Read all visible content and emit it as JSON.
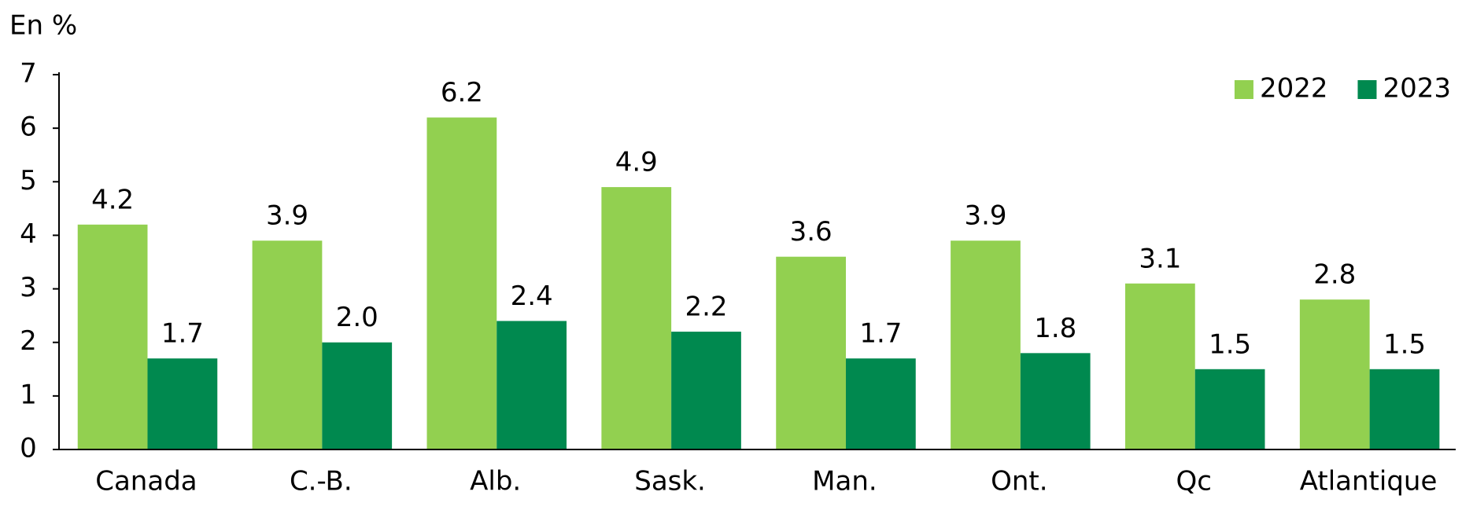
{
  "chart_data": {
    "type": "bar",
    "y_axis_label": "En %",
    "categories": [
      "Canada",
      "C.-B.",
      "Alb.",
      "Sask.",
      "Man.",
      "Ont.",
      "Qc",
      "Atlantique"
    ],
    "series": [
      {
        "name": "2022",
        "color": "#92d050",
        "values": [
          4.2,
          3.9,
          6.2,
          4.9,
          3.6,
          3.9,
          3.1,
          2.8
        ],
        "value_labels": [
          "4.2",
          "3.9",
          "6.2",
          "4.9",
          "3.6",
          "3.9",
          "3.1",
          "2.8"
        ]
      },
      {
        "name": "2023",
        "color": "#00894f",
        "values": [
          1.7,
          2,
          2.4,
          2.2,
          1.7,
          1.8,
          1.5,
          1.5
        ],
        "value_labels": [
          "1.7",
          "2.0",
          "2.4",
          "2.2",
          "1.7",
          "1.8",
          "1.5",
          "1.5"
        ]
      }
    ],
    "ylim": [
      0,
      7
    ],
    "yticks": [
      0,
      1,
      2,
      3,
      4,
      5,
      6,
      7
    ],
    "legend": "top-right"
  }
}
